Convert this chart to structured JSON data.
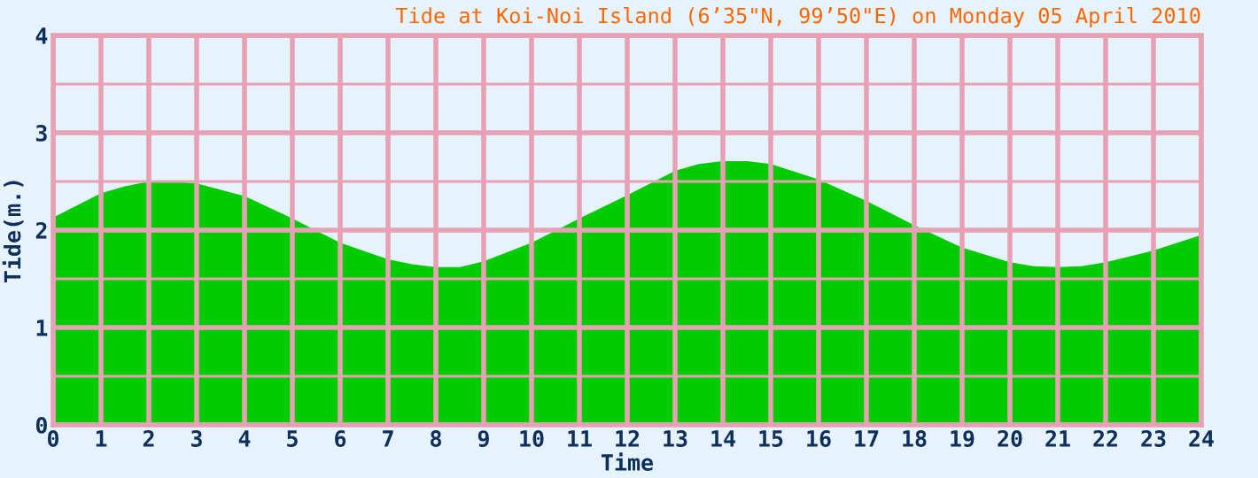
{
  "chart_data": {
    "type": "area",
    "title": "Tide at Koi-Noi Island (6’35\"N, 99’50\"E) on Monday 05 April 2010",
    "xlabel": "Time",
    "ylabel": "Tide(m.)",
    "x": [
      0,
      1,
      1.5,
      2,
      2.5,
      3,
      4,
      5,
      6,
      7,
      7.5,
      8,
      8.5,
      9,
      10,
      11,
      12,
      13,
      13.5,
      14,
      14.5,
      15,
      16,
      17,
      18,
      19,
      20,
      20.5,
      21,
      21.5,
      22,
      23,
      24
    ],
    "series": [
      {
        "color": "#00cc00",
        "values": [
          2.13,
          2.38,
          2.45,
          2.5,
          2.5,
          2.48,
          2.35,
          2.12,
          1.87,
          1.7,
          1.65,
          1.62,
          1.62,
          1.68,
          1.87,
          2.12,
          2.36,
          2.61,
          2.68,
          2.71,
          2.71,
          2.68,
          2.52,
          2.3,
          2.05,
          1.82,
          1.67,
          1.63,
          1.62,
          1.63,
          1.67,
          1.79,
          1.95
        ]
      }
    ],
    "xlim": [
      0,
      24
    ],
    "ylim": [
      0,
      4
    ],
    "xticks": [
      0,
      1,
      2,
      3,
      4,
      5,
      6,
      7,
      8,
      9,
      10,
      11,
      12,
      13,
      14,
      15,
      16,
      17,
      18,
      19,
      20,
      21,
      22,
      23,
      24
    ],
    "yticks": [
      0,
      {
        "value": 0.5,
        "label": null
      },
      1,
      {
        "value": 1.5,
        "label": null
      },
      2,
      {
        "value": 2.5,
        "label": null
      },
      3,
      {
        "value": 3.5,
        "label": null
      },
      4
    ],
    "grid": true,
    "legend": false
  }
}
